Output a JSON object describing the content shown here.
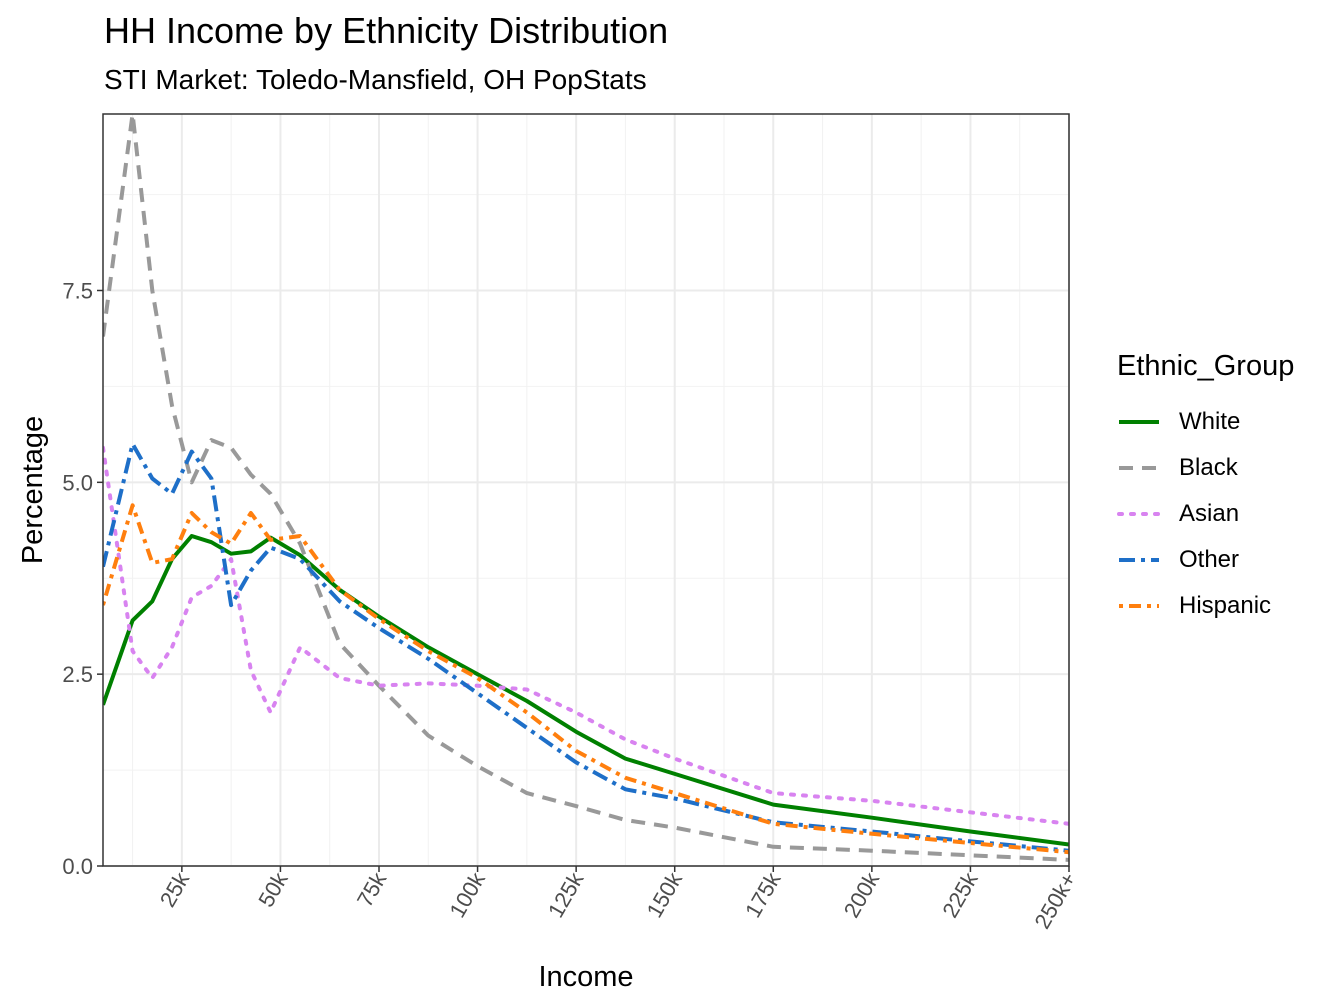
{
  "chart_data": {
    "type": "line",
    "title": "HH Income by Ethnicity Distribution",
    "subtitle": "STI Market: Toledo-Mansfield, OH PopStats",
    "xlabel": "Income",
    "ylabel": "Percentage",
    "xlim": [
      5000,
      250000
    ],
    "ylim": [
      0,
      9.8
    ],
    "x_ticks": [
      {
        "value": 25000,
        "label": "25k"
      },
      {
        "value": 50000,
        "label": "50k"
      },
      {
        "value": 75000,
        "label": "75k"
      },
      {
        "value": 100000,
        "label": "100k"
      },
      {
        "value": 125000,
        "label": "125k"
      },
      {
        "value": 150000,
        "label": "150k"
      },
      {
        "value": 175000,
        "label": "175k"
      },
      {
        "value": 200000,
        "label": "200k"
      },
      {
        "value": 225000,
        "label": "225k"
      },
      {
        "value": 250000,
        "label": "250k+"
      }
    ],
    "y_ticks": [
      {
        "value": 0,
        "label": "0.0"
      },
      {
        "value": 2.5,
        "label": "2.5"
      },
      {
        "value": 5,
        "label": "5.0"
      },
      {
        "value": 7.5,
        "label": "7.5"
      }
    ],
    "grid": true,
    "legend": {
      "title": "Ethnic_Group",
      "position": "right"
    },
    "x": [
      5000,
      12500,
      17500,
      22500,
      27500,
      32500,
      37500,
      42500,
      47500,
      55000,
      65000,
      75000,
      87500,
      100000,
      112500,
      125000,
      137500,
      150000,
      175000,
      200000,
      225000,
      250000
    ],
    "series": [
      {
        "name": "White",
        "color": "#008000",
        "dash": "solid",
        "values": [
          2.1,
          3.2,
          3.45,
          4.0,
          4.3,
          4.22,
          4.07,
          4.1,
          4.28,
          4.05,
          3.6,
          3.25,
          2.85,
          2.5,
          2.15,
          1.75,
          1.4,
          1.2,
          0.8,
          0.63,
          0.45,
          0.28
        ]
      },
      {
        "name": "Black",
        "color": "#999999",
        "dash": "dashed",
        "values": [
          6.9,
          9.8,
          7.5,
          6.0,
          5.0,
          5.55,
          5.45,
          5.1,
          4.85,
          4.2,
          2.9,
          2.35,
          1.7,
          1.3,
          0.95,
          0.78,
          0.6,
          0.5,
          0.25,
          0.2,
          0.14,
          0.08
        ]
      },
      {
        "name": "Asian",
        "color": "#d883f0",
        "dash": "dotted",
        "values": [
          5.45,
          2.8,
          2.45,
          2.85,
          3.5,
          3.65,
          4.0,
          2.55,
          2.0,
          2.85,
          2.45,
          2.35,
          2.38,
          2.35,
          2.3,
          2.0,
          1.65,
          1.4,
          0.95,
          0.85,
          0.7,
          0.55
        ]
      },
      {
        "name": "Other",
        "color": "#1e6fc8",
        "dash": "dashdot",
        "values": [
          3.9,
          5.5,
          5.05,
          4.85,
          5.4,
          5.05,
          3.4,
          3.85,
          4.15,
          4.0,
          3.45,
          3.1,
          2.7,
          2.25,
          1.8,
          1.35,
          1.0,
          0.88,
          0.57,
          0.45,
          0.32,
          0.2
        ]
      },
      {
        "name": "Hispanic",
        "color": "#ff7f0e",
        "dash": "dotdash",
        "values": [
          3.4,
          4.7,
          3.95,
          4.0,
          4.6,
          4.35,
          4.2,
          4.6,
          4.25,
          4.3,
          3.6,
          3.22,
          2.8,
          2.45,
          2.0,
          1.5,
          1.15,
          0.95,
          0.55,
          0.42,
          0.3,
          0.18
        ]
      }
    ]
  }
}
